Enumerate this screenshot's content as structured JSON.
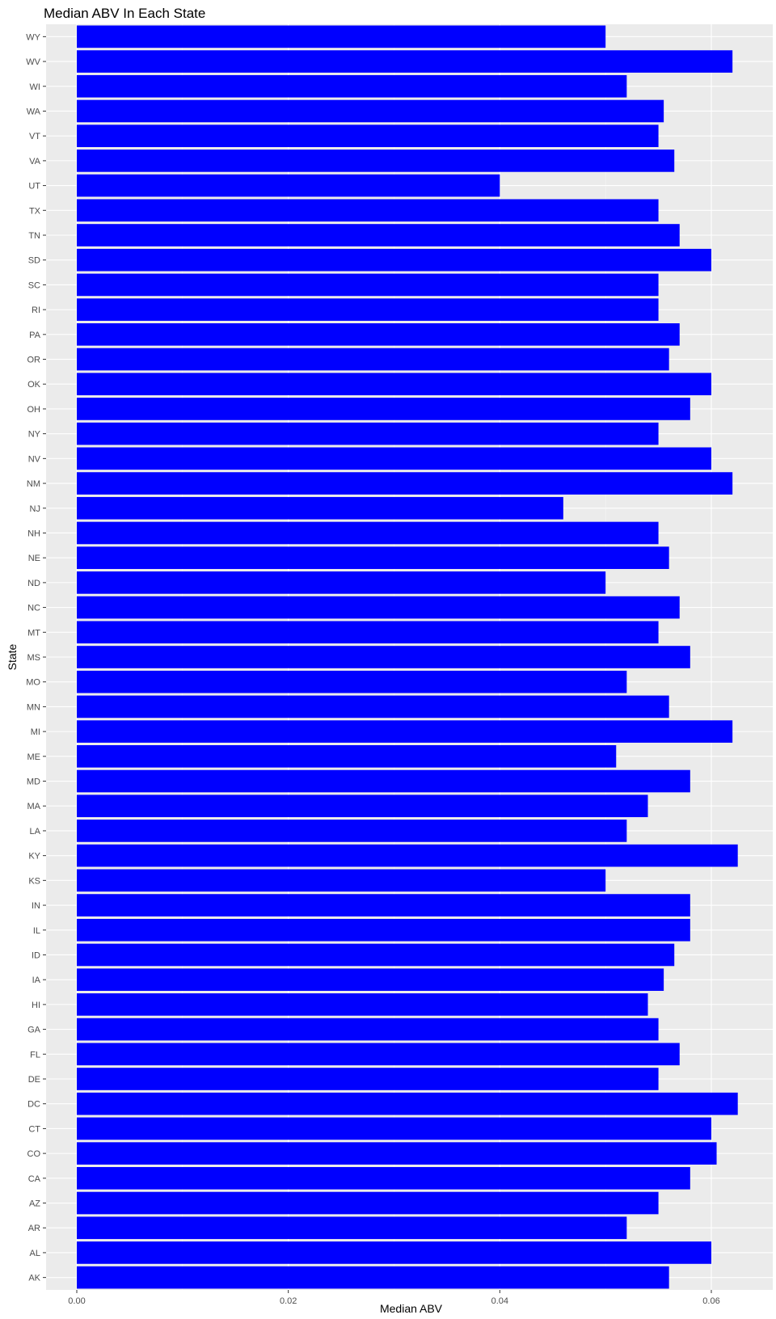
{
  "chart_data": {
    "type": "bar",
    "orientation": "horizontal",
    "title": "Median ABV In Each State",
    "xlabel": "Median ABV",
    "ylabel": "State",
    "xlim": [
      0,
      0.0655
    ],
    "x_ticks": [
      0.0,
      0.02,
      0.04,
      0.06
    ],
    "x_tick_labels": [
      "0.00",
      "0.02",
      "0.04",
      "0.06"
    ],
    "grid": true,
    "legend": "none",
    "colors": {
      "bar": "#0000ff",
      "panel_background": "#ebebeb",
      "grid_major": "#ffffff",
      "grid_minor": "#f5f5f5",
      "tick_text": "#4d4d4d"
    },
    "categories": [
      "AK",
      "AL",
      "AR",
      "AZ",
      "CA",
      "CO",
      "CT",
      "DC",
      "DE",
      "FL",
      "GA",
      "HI",
      "IA",
      "ID",
      "IL",
      "IN",
      "KS",
      "KY",
      "LA",
      "MA",
      "MD",
      "ME",
      "MI",
      "MN",
      "MO",
      "MS",
      "MT",
      "NC",
      "ND",
      "NE",
      "NH",
      "NJ",
      "NM",
      "NV",
      "NY",
      "OH",
      "OK",
      "OR",
      "PA",
      "RI",
      "SC",
      "SD",
      "TN",
      "TX",
      "UT",
      "VA",
      "VT",
      "WA",
      "WI",
      "WV",
      "WY"
    ],
    "values": [
      0.056,
      0.06,
      0.052,
      0.055,
      0.058,
      0.0605,
      0.06,
      0.0625,
      0.055,
      0.057,
      0.055,
      0.054,
      0.0555,
      0.0565,
      0.058,
      0.058,
      0.05,
      0.0625,
      0.052,
      0.054,
      0.058,
      0.051,
      0.062,
      0.056,
      0.052,
      0.058,
      0.055,
      0.057,
      0.05,
      0.056,
      0.055,
      0.046,
      0.062,
      0.06,
      0.055,
      0.058,
      0.06,
      0.056,
      0.057,
      0.055,
      0.055,
      0.06,
      0.057,
      0.055,
      0.04,
      0.0565,
      0.055,
      0.0555,
      0.052,
      0.062,
      0.05
    ]
  }
}
